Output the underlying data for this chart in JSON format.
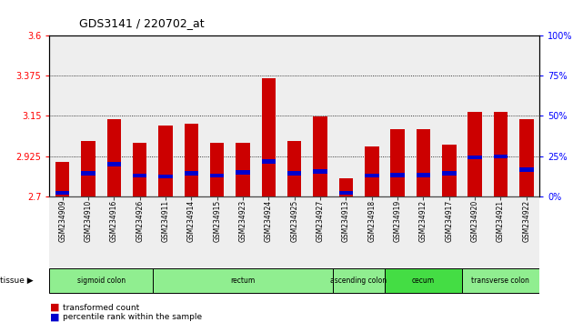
{
  "title": "GDS3141 / 220702_at",
  "samples": [
    "GSM234909",
    "GSM234910",
    "GSM234916",
    "GSM234926",
    "GSM234911",
    "GSM234914",
    "GSM234915",
    "GSM234923",
    "GSM234924",
    "GSM234925",
    "GSM234927",
    "GSM234913",
    "GSM234918",
    "GSM234919",
    "GSM234912",
    "GSM234917",
    "GSM234920",
    "GSM234921",
    "GSM234922"
  ],
  "red_values": [
    2.895,
    3.01,
    3.13,
    3.0,
    3.095,
    3.105,
    3.0,
    3.0,
    3.36,
    3.01,
    3.145,
    2.8,
    2.98,
    3.075,
    3.075,
    2.99,
    3.175,
    3.175,
    3.13
  ],
  "blue_values": [
    2.72,
    2.83,
    2.88,
    2.815,
    2.81,
    2.83,
    2.815,
    2.835,
    2.895,
    2.83,
    2.84,
    2.72,
    2.815,
    2.82,
    2.82,
    2.83,
    2.92,
    2.925,
    2.85
  ],
  "tissue_groups": [
    {
      "label": "sigmoid colon",
      "start": 0,
      "end": 4,
      "color": "#90EE90"
    },
    {
      "label": "rectum",
      "start": 4,
      "end": 11,
      "color": "#90EE90"
    },
    {
      "label": "ascending colon",
      "start": 11,
      "end": 13,
      "color": "#90EE90"
    },
    {
      "label": "cecum",
      "start": 13,
      "end": 16,
      "color": "#44DD44"
    },
    {
      "label": "transverse colon",
      "start": 16,
      "end": 19,
      "color": "#90EE90"
    }
  ],
  "ymin": 2.7,
  "ymax": 3.6,
  "yticks": [
    2.7,
    2.925,
    3.15,
    3.375,
    3.6
  ],
  "right_yticks": [
    0,
    25,
    50,
    75,
    100
  ],
  "grid_values": [
    2.925,
    3.15,
    3.375
  ],
  "bar_color": "#CC0000",
  "blue_color": "#0000CC",
  "bar_width": 0.55,
  "legend_red": "transformed count",
  "legend_blue": "percentile rank within the sample",
  "bg_color": "#ffffff"
}
